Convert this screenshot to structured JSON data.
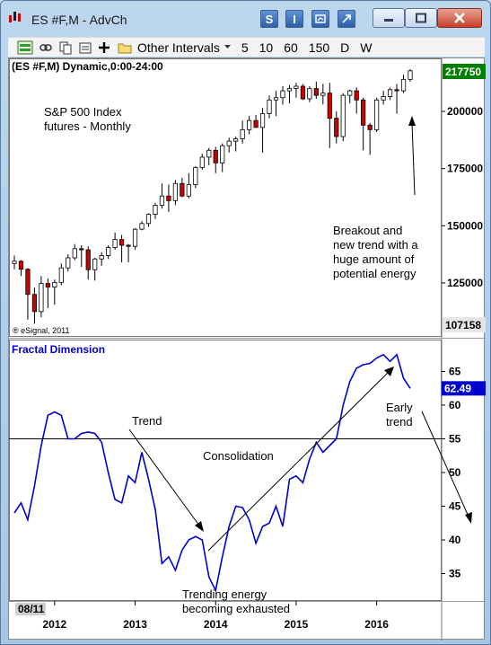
{
  "window": {
    "title": "ES #F,M - AdvCh",
    "s_button": "S",
    "i_button": "I"
  },
  "toolbar": {
    "other_intervals_label": "Other Intervals",
    "intervals": [
      "5",
      "10",
      "60",
      "150",
      "D",
      "W"
    ]
  },
  "price_panel": {
    "header": "(ES #F,M) Dynamic,0:00-24:00",
    "title_line1": "S&P 500 Index",
    "title_line2": "futures - Monthly",
    "annotation_lines": [
      "Breakout and",
      "new trend with a",
      "huge amount of",
      "potential energy"
    ],
    "watermark": "® eSignal, 2011",
    "last_price": "217750",
    "low_marker": "107158",
    "axis_ticks": [
      {
        "label": "200000",
        "value": 200000
      },
      {
        "label": "175000",
        "value": 175000
      },
      {
        "label": "150000",
        "value": 150000
      },
      {
        "label": "125000",
        "value": 125000
      }
    ],
    "colors": {
      "up": "#ffffff",
      "down": "#cc0000",
      "badge": "#008000"
    }
  },
  "indicator_panel": {
    "title": "Fractal Dimension",
    "current_value": "62.49",
    "reference_level": 55,
    "axis_ticks": [
      {
        "label": "65",
        "value": 65
      },
      {
        "label": "60",
        "value": 60
      },
      {
        "label": "55",
        "value": 55
      },
      {
        "label": "50",
        "value": 50
      },
      {
        "label": "45",
        "value": 45
      },
      {
        "label": "40",
        "value": 40
      },
      {
        "label": "35",
        "value": 35
      }
    ],
    "annotations": {
      "trend": "Trend",
      "consolidation": "Consolidation",
      "exhausted_line1": "Trending energy",
      "exhausted_line2": "becoming exhausted",
      "early_line1": "Early",
      "early_line2": "trend"
    },
    "line_color": "#0000cc"
  },
  "x_axis": {
    "cursor_label": "08/11",
    "years": [
      "2012",
      "2013",
      "2014",
      "2015",
      "2016"
    ]
  },
  "chart_data": [
    {
      "type": "candlestick",
      "title": "S&P 500 Index futures - Monthly",
      "ylim": [
        107158,
        217750
      ],
      "x_range": [
        "2011-07",
        "2016-08"
      ],
      "x_axis_labels": [
        "2012",
        "2013",
        "2014",
        "2015",
        "2016"
      ],
      "candles": [
        {
          "o": 133500,
          "h": 137000,
          "l": 131000,
          "c": 134500
        },
        {
          "o": 134500,
          "h": 135000,
          "l": 128000,
          "c": 131000
        },
        {
          "o": 131000,
          "h": 131500,
          "l": 109000,
          "c": 120000
        },
        {
          "o": 120000,
          "h": 123000,
          "l": 107200,
          "c": 112500
        },
        {
          "o": 112500,
          "h": 128000,
          "l": 110000,
          "c": 124800
        },
        {
          "o": 124800,
          "h": 127000,
          "l": 114000,
          "c": 123200
        },
        {
          "o": 123200,
          "h": 126500,
          "l": 115500,
          "c": 125200
        },
        {
          "o": 125200,
          "h": 133500,
          "l": 124000,
          "c": 131600
        },
        {
          "o": 131600,
          "h": 137500,
          "l": 130000,
          "c": 136000
        },
        {
          "o": 136000,
          "h": 142000,
          "l": 135000,
          "c": 140000
        },
        {
          "o": 140000,
          "h": 141500,
          "l": 132000,
          "c": 139500
        },
        {
          "o": 139500,
          "h": 141000,
          "l": 126500,
          "c": 130800
        },
        {
          "o": 130800,
          "h": 136000,
          "l": 126000,
          "c": 135500
        },
        {
          "o": 135500,
          "h": 138500,
          "l": 132500,
          "c": 137000
        },
        {
          "o": 137000,
          "h": 141500,
          "l": 135500,
          "c": 140500
        },
        {
          "o": 140500,
          "h": 147000,
          "l": 139500,
          "c": 144000
        },
        {
          "o": 144000,
          "h": 146000,
          "l": 134000,
          "c": 141500
        },
        {
          "o": 141500,
          "h": 142000,
          "l": 134000,
          "c": 141000
        },
        {
          "o": 141000,
          "h": 149000,
          "l": 139500,
          "c": 148500
        },
        {
          "o": 148500,
          "h": 152000,
          "l": 148000,
          "c": 151000
        },
        {
          "o": 151000,
          "h": 155500,
          "l": 149500,
          "c": 155000
        },
        {
          "o": 155000,
          "h": 160000,
          "l": 153000,
          "c": 159000
        },
        {
          "o": 159000,
          "h": 168500,
          "l": 157500,
          "c": 163000
        },
        {
          "o": 163000,
          "h": 168000,
          "l": 156000,
          "c": 161000
        },
        {
          "o": 161000,
          "h": 170000,
          "l": 159000,
          "c": 168500
        },
        {
          "o": 168500,
          "h": 171000,
          "l": 162500,
          "c": 163000
        },
        {
          "o": 163000,
          "h": 173000,
          "l": 162000,
          "c": 168000
        },
        {
          "o": 168000,
          "h": 176000,
          "l": 166500,
          "c": 175500
        },
        {
          "o": 175500,
          "h": 181500,
          "l": 174500,
          "c": 180000
        },
        {
          "o": 180000,
          "h": 184000,
          "l": 176500,
          "c": 183000
        },
        {
          "o": 183000,
          "h": 184500,
          "l": 173000,
          "c": 177500
        },
        {
          "o": 177500,
          "h": 186000,
          "l": 173500,
          "c": 185000
        },
        {
          "o": 185000,
          "h": 188500,
          "l": 182000,
          "c": 187000
        },
        {
          "o": 187000,
          "h": 189000,
          "l": 182500,
          "c": 188000
        },
        {
          "o": 188000,
          "h": 196000,
          "l": 186000,
          "c": 192000
        },
        {
          "o": 192000,
          "h": 198000,
          "l": 190000,
          "c": 196000
        },
        {
          "o": 196000,
          "h": 198500,
          "l": 194000,
          "c": 193000
        },
        {
          "o": 193000,
          "h": 201500,
          "l": 182000,
          "c": 199000
        },
        {
          "o": 199000,
          "h": 207000,
          "l": 197000,
          "c": 205000
        },
        {
          "o": 205000,
          "h": 209000,
          "l": 198000,
          "c": 206000
        },
        {
          "o": 206000,
          "h": 211000,
          "l": 203000,
          "c": 209000
        },
        {
          "o": 209000,
          "h": 211500,
          "l": 203500,
          "c": 210000
        },
        {
          "o": 210000,
          "h": 212500,
          "l": 206000,
          "c": 211000
        },
        {
          "o": 211000,
          "h": 212000,
          "l": 205000,
          "c": 205500
        },
        {
          "o": 205500,
          "h": 211000,
          "l": 204000,
          "c": 210000
        },
        {
          "o": 210000,
          "h": 213000,
          "l": 205500,
          "c": 207000
        },
        {
          "o": 207000,
          "h": 212000,
          "l": 203000,
          "c": 208000
        },
        {
          "o": 208000,
          "h": 212500,
          "l": 184000,
          "c": 197000
        },
        {
          "o": 197000,
          "h": 200000,
          "l": 186000,
          "c": 189000
        },
        {
          "o": 189000,
          "h": 208000,
          "l": 187000,
          "c": 207000
        },
        {
          "o": 207000,
          "h": 209500,
          "l": 203500,
          "c": 209000
        },
        {
          "o": 209000,
          "h": 210500,
          "l": 199000,
          "c": 205000
        },
        {
          "o": 205000,
          "h": 206000,
          "l": 183000,
          "c": 194000
        },
        {
          "o": 194000,
          "h": 195000,
          "l": 181000,
          "c": 192000
        },
        {
          "o": 192000,
          "h": 206000,
          "l": 191000,
          "c": 205000
        },
        {
          "o": 205000,
          "h": 209000,
          "l": 203000,
          "c": 206500
        },
        {
          "o": 206500,
          "h": 210500,
          "l": 205000,
          "c": 209500
        },
        {
          "o": 209500,
          "h": 212000,
          "l": 199000,
          "c": 209000
        },
        {
          "o": 209000,
          "h": 216000,
          "l": 208000,
          "c": 214000
        },
        {
          "o": 214000,
          "h": 218500,
          "l": 213000,
          "c": 217750
        }
      ]
    },
    {
      "type": "line",
      "title": "Fractal Dimension",
      "x_range": [
        "2011-07",
        "2016-08"
      ],
      "ylim": [
        30,
        70
      ],
      "reference_line": 55,
      "series": [
        {
          "values": [
            44,
            45.5,
            43,
            48,
            54,
            58.5,
            59,
            58.5,
            55,
            55,
            55.8,
            56,
            55.8,
            54.5,
            50,
            46,
            45.5,
            49.5,
            48.5,
            53,
            49,
            44.5,
            36.5,
            37.5,
            35.5,
            38.5,
            40,
            40.5,
            40,
            34.5,
            32.5,
            37.5,
            42,
            45,
            44.8,
            43,
            39.5,
            42,
            42.5,
            45,
            42,
            49,
            49.5,
            48.5,
            52,
            54.5,
            53,
            54,
            55,
            60,
            63.5,
            65.5,
            66,
            66.2,
            67,
            67.5,
            66.5,
            67.5,
            64,
            62.49
          ]
        }
      ]
    }
  ]
}
